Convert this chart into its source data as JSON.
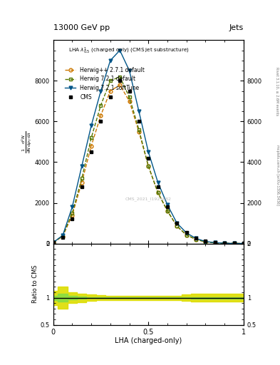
{
  "title_top": "13000 GeV pp",
  "title_right": "Jets",
  "plot_title": "LHA $\\lambda^{1}_{0.5}$ (charged only) (CMS jet substructure)",
  "xlabel": "LHA (charged-only)",
  "ylabel_ratio": "Ratio to CMS",
  "right_label_top": "Rivet 3.1.10, ≥ 2.6M events",
  "right_label_bottom": "mcplots.cern.ch [arXiv:1306.3436]",
  "watermark": "CMS_2021_I1925682",
  "lha_x": [
    0.0,
    0.05,
    0.1,
    0.15,
    0.2,
    0.25,
    0.3,
    0.35,
    0.4,
    0.45,
    0.5,
    0.55,
    0.6,
    0.65,
    0.7,
    0.75,
    0.8,
    0.85,
    0.9,
    0.95,
    1.0
  ],
  "cms_y": [
    50,
    300,
    1200,
    2800,
    4500,
    6000,
    7200,
    8000,
    7500,
    6000,
    4200,
    2800,
    1800,
    1000,
    550,
    280,
    120,
    50,
    20,
    10,
    5
  ],
  "herwig_pp_y": [
    50,
    350,
    1400,
    3000,
    4800,
    6300,
    7500,
    7800,
    7000,
    5500,
    3800,
    2500,
    1600,
    850,
    420,
    200,
    80,
    30,
    10,
    5,
    2
  ],
  "herwig_721_y": [
    50,
    380,
    1500,
    3200,
    5200,
    6800,
    8000,
    8200,
    7200,
    5600,
    3800,
    2500,
    1600,
    850,
    420,
    200,
    80,
    30,
    10,
    5,
    2
  ],
  "herwig_soft_y": [
    50,
    400,
    1800,
    3800,
    5800,
    7500,
    9000,
    9500,
    8500,
    6500,
    4500,
    3000,
    1900,
    1000,
    520,
    250,
    100,
    40,
    15,
    5,
    2
  ],
  "ylim_main": [
    0,
    10000
  ],
  "yticks_main": [
    0,
    2000,
    4000,
    6000,
    8000
  ],
  "ylim_ratio": [
    0.5,
    2.0
  ],
  "yticks_ratio": [
    0.5,
    1.0,
    2.0
  ],
  "xlim": [
    0,
    1
  ],
  "cms_color": "#000000",
  "herwig_pp_color": "#cc7700",
  "herwig_721_color": "#557700",
  "herwig_soft_color": "#005588",
  "ratio_green_color": "#88dd44",
  "ratio_yellow_color": "#dddd00",
  "bg_color": "#ffffff",
  "panel_bg": "#ffffff",
  "ratio_yellow_lo": [
    0.87,
    0.8,
    0.9,
    0.92,
    0.94,
    0.95,
    0.96,
    0.96,
    0.96,
    0.96,
    0.96,
    0.96,
    0.96,
    0.96,
    0.94,
    0.93,
    0.93,
    0.93,
    0.93,
    0.93,
    0.93
  ],
  "ratio_yellow_hi": [
    1.13,
    1.2,
    1.1,
    1.08,
    1.06,
    1.05,
    1.04,
    1.04,
    1.04,
    1.04,
    1.04,
    1.04,
    1.04,
    1.04,
    1.06,
    1.07,
    1.07,
    1.07,
    1.07,
    1.07,
    1.07
  ],
  "ratio_green_lo": [
    0.96,
    0.93,
    0.97,
    0.98,
    0.99,
    0.99,
    0.995,
    0.995,
    0.995,
    0.995,
    0.995,
    0.995,
    0.995,
    0.995,
    0.99,
    0.985,
    0.985,
    0.985,
    0.985,
    0.985,
    0.985
  ],
  "ratio_green_hi": [
    1.04,
    1.07,
    1.03,
    1.02,
    1.01,
    1.01,
    1.005,
    1.005,
    1.005,
    1.005,
    1.005,
    1.005,
    1.005,
    1.005,
    1.01,
    1.015,
    1.015,
    1.015,
    1.015,
    1.015,
    1.015
  ]
}
